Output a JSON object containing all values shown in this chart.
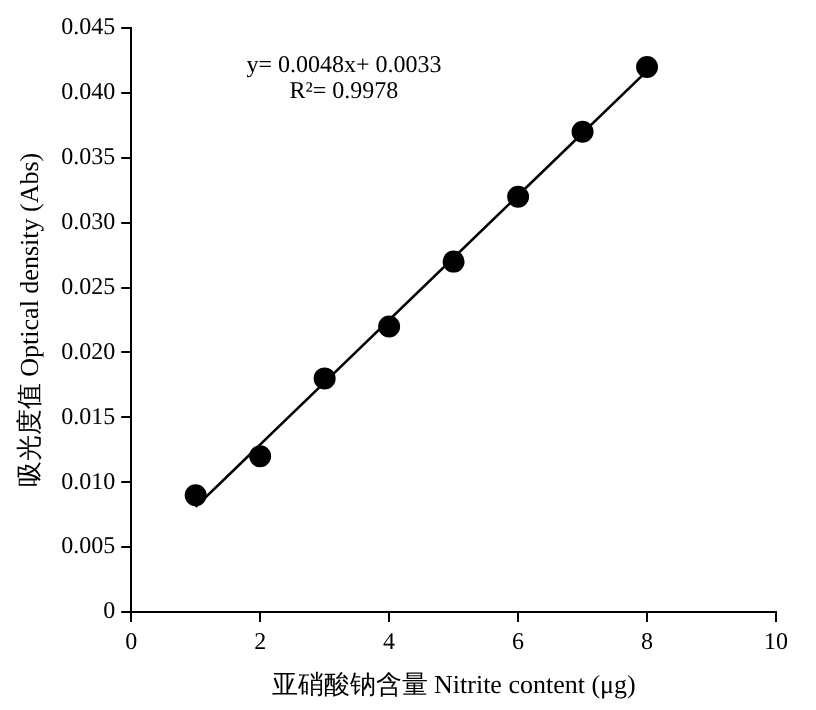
{
  "chart_data": {
    "type": "scatter",
    "xlabel": "亚硝酸钠含量 Nitrite content (μg)",
    "ylabel": "吸光度值 Optical density (Abs)",
    "annotations": [
      "y= 0.0048x+ 0.0033",
      "R²= 0.9978"
    ],
    "series": [
      {
        "marker": "circle",
        "color": "#000000",
        "x": [
          1,
          2,
          3,
          4,
          5,
          6,
          7,
          8
        ],
        "values": [
          0.009,
          0.012,
          0.018,
          0.022,
          0.027,
          0.032,
          0.037,
          0.042
        ]
      },
      {
        "type": "line",
        "marker": "none",
        "color": "#000000",
        "x": [
          1,
          8
        ],
        "values": [
          0.0081,
          0.0417
        ]
      }
    ],
    "xlim": [
      0,
      10
    ],
    "xticks": [
      0,
      2,
      4,
      6,
      8,
      10
    ],
    "ylim": [
      0,
      0.045
    ],
    "yticks": [
      0,
      0.005,
      {
        "value": 0.01,
        "label": "0.010"
      },
      0.015,
      {
        "value": 0.02,
        "label": "0.020"
      },
      0.025,
      {
        "value": 0.03,
        "label": "0.030"
      },
      0.035,
      {
        "value": 0.04,
        "label": "0.040"
      },
      0.045
    ],
    "grid": false,
    "legend": false,
    "line_style": "solid"
  }
}
